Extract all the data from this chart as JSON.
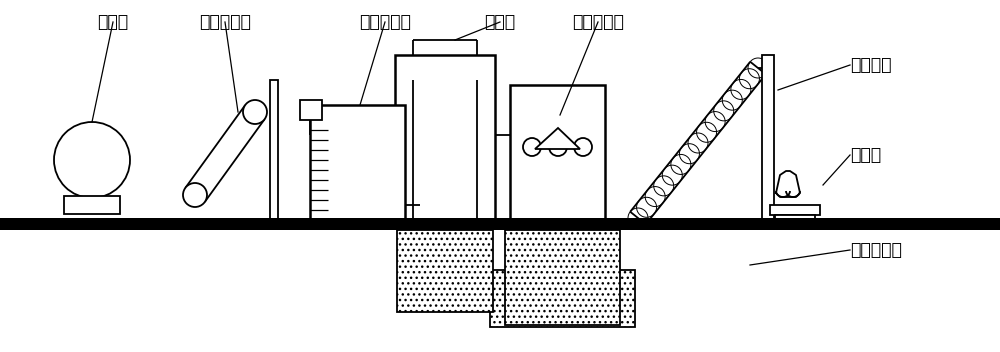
{
  "bg_color": "#ffffff",
  "line_color": "#000000",
  "labels": {
    "fenshuiji": "粉碎机",
    "pidaichuansongjii": "皮带传送机",
    "jiaobanyingchiyi": "搅拌反应池",
    "chendianche": "沉淀池",
    "guabanganjianji": "刮板干燥机",
    "chuanshujialong": "传输蛟龙",
    "dabaochen": "打包称",
    "wushuichulichi": "污水处理池"
  }
}
